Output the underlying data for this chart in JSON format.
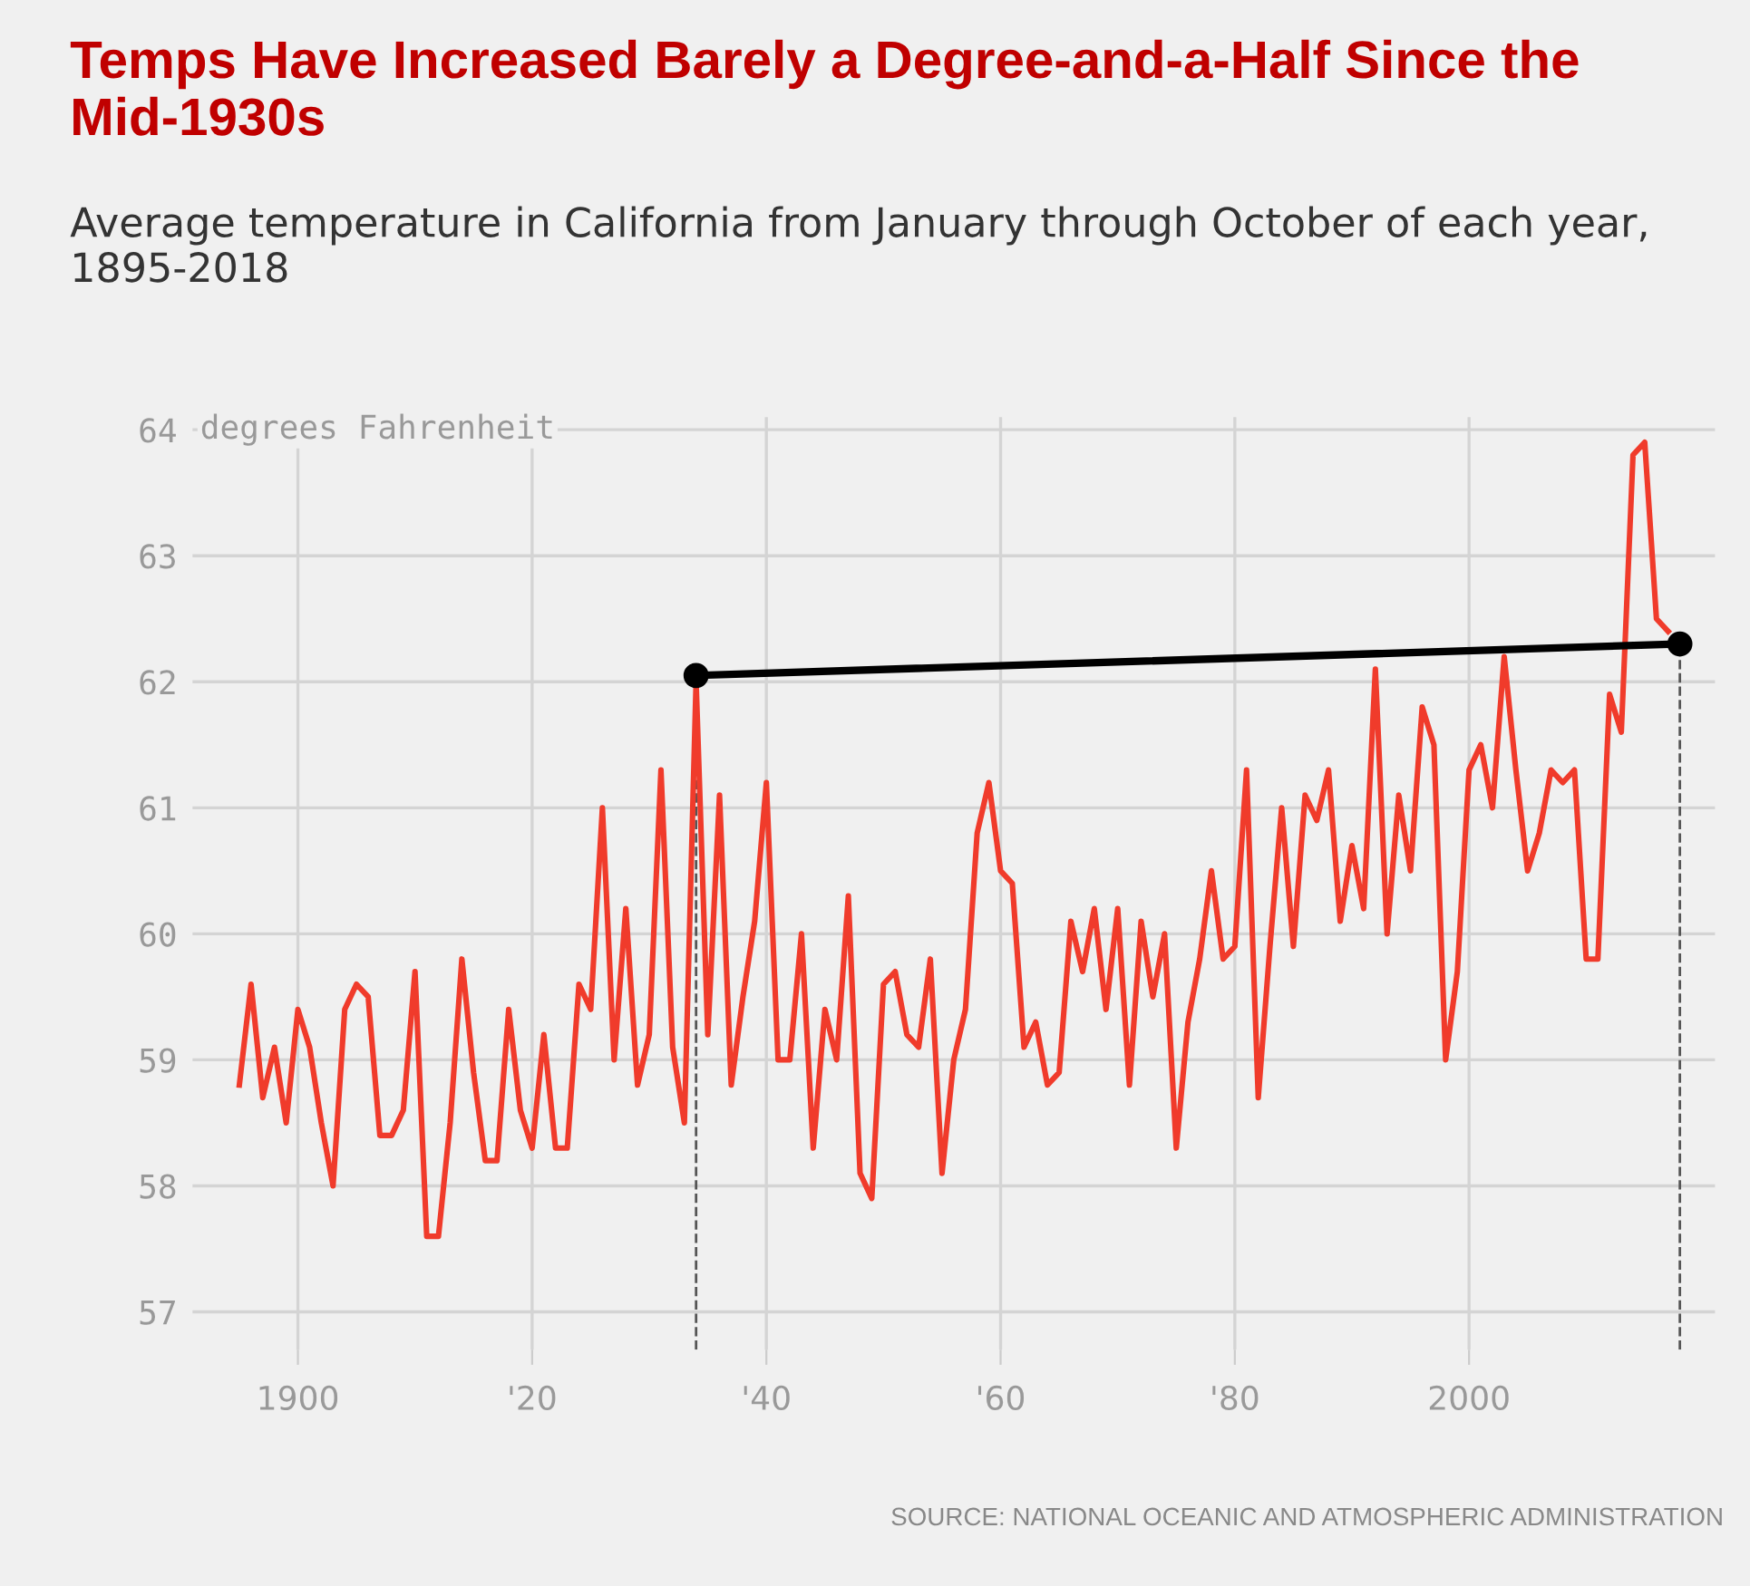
{
  "chart_data": {
    "type": "line",
    "title": "Temps Have Increased Barely a Degree-and-a-Half Since the Mid-1930s",
    "subtitle": "Average temperature in California from January through October of each year, 1895-2018",
    "ylabel": "degrees Fahrenheit",
    "annotations": [
      "SOURCE: NATIONAL OCEANIC AND ATMOSPHERIC ADMINISTRATION"
    ],
    "series": [
      {
        "color": "#f03b2b",
        "x": [
          1895,
          1896,
          1897,
          1898,
          1899,
          1900,
          1901,
          1902,
          1903,
          1904,
          1905,
          1906,
          1907,
          1908,
          1909,
          1910,
          1911,
          1912,
          1913,
          1914,
          1915,
          1916,
          1917,
          1918,
          1919,
          1920,
          1921,
          1922,
          1923,
          1924,
          1925,
          1926,
          1927,
          1928,
          1929,
          1930,
          1931,
          1932,
          1933,
          1934,
          1935,
          1936,
          1937,
          1938,
          1939,
          1940,
          1941,
          1942,
          1943,
          1944,
          1945,
          1946,
          1947,
          1948,
          1949,
          1950,
          1951,
          1952,
          1953,
          1954,
          1955,
          1956,
          1957,
          1958,
          1959,
          1960,
          1961,
          1962,
          1963,
          1964,
          1965,
          1966,
          1967,
          1968,
          1969,
          1970,
          1971,
          1972,
          1973,
          1974,
          1975,
          1976,
          1977,
          1978,
          1979,
          1980,
          1981,
          1982,
          1983,
          1984,
          1985,
          1986,
          1987,
          1988,
          1989,
          1990,
          1991,
          1992,
          1993,
          1994,
          1995,
          1996,
          1997,
          1998,
          1999,
          2000,
          2001,
          2002,
          2003,
          2004,
          2005,
          2006,
          2007,
          2008,
          2009,
          2010,
          2011,
          2012,
          2013,
          2014,
          2015,
          2016,
          2017
        ],
        "values": [
          58.8,
          59.6,
          58.7,
          59.1,
          58.5,
          59.4,
          59.1,
          58.5,
          58.0,
          59.4,
          59.6,
          59.5,
          58.4,
          58.4,
          58.6,
          59.7,
          57.6,
          57.6,
          58.5,
          59.8,
          58.9,
          58.2,
          58.2,
          59.4,
          58.6,
          58.3,
          59.2,
          58.3,
          58.3,
          59.6,
          59.4,
          61.0,
          59.0,
          60.2,
          58.8,
          59.2,
          61.3,
          59.1,
          58.5,
          62.0,
          59.2,
          61.1,
          58.8,
          59.5,
          60.1,
          61.2,
          59.0,
          59.0,
          60.0,
          58.3,
          59.4,
          59.0,
          60.3,
          58.1,
          57.9,
          59.6,
          59.7,
          59.2,
          59.1,
          59.8,
          58.1,
          59.0,
          59.4,
          60.8,
          61.2,
          60.5,
          60.4,
          59.1,
          59.3,
          58.8,
          58.9,
          60.1,
          59.7,
          60.2,
          59.4,
          60.2,
          58.8,
          60.1,
          59.5,
          60.0,
          58.3,
          59.3,
          59.8,
          60.5,
          59.8,
          59.9,
          61.3,
          58.7,
          59.9,
          61.0,
          59.9,
          61.1,
          60.9,
          61.3,
          60.1,
          60.7,
          60.2,
          62.1,
          60.0,
          61.1,
          60.5,
          61.8,
          61.5,
          59.0,
          59.7,
          61.3,
          61.5,
          61.0,
          62.2,
          61.3,
          60.5,
          60.8,
          61.3,
          61.2,
          61.3,
          59.8,
          59.8,
          61.9,
          61.6,
          63.8,
          63.9,
          62.5,
          62.4
        ]
      },
      {
        "color": "#000000",
        "x": [
          1934,
          2018
        ],
        "values": [
          62.05,
          62.3
        ],
        "marker": "circle"
      }
    ],
    "ref_lines": [
      {
        "axis": "x",
        "value": 1934,
        "color": "#555555",
        "line_style": "dashed"
      },
      {
        "axis": "x",
        "value": 2018,
        "color": "#555555",
        "line_style": "dashed"
      }
    ],
    "xlim": [
      1891,
      2021
    ],
    "ylim": [
      56.7,
      64.1
    ],
    "xticks": [
      1900,
      {
        "value": 1920,
        "label": "'20"
      },
      {
        "value": 1940,
        "label": "'40"
      },
      {
        "value": 1960,
        "label": "'60"
      },
      {
        "value": 1980,
        "label": "'80"
      },
      2000
    ],
    "yticks": [
      57,
      58,
      59,
      60,
      61,
      62,
      63,
      64
    ],
    "grid": true
  }
}
